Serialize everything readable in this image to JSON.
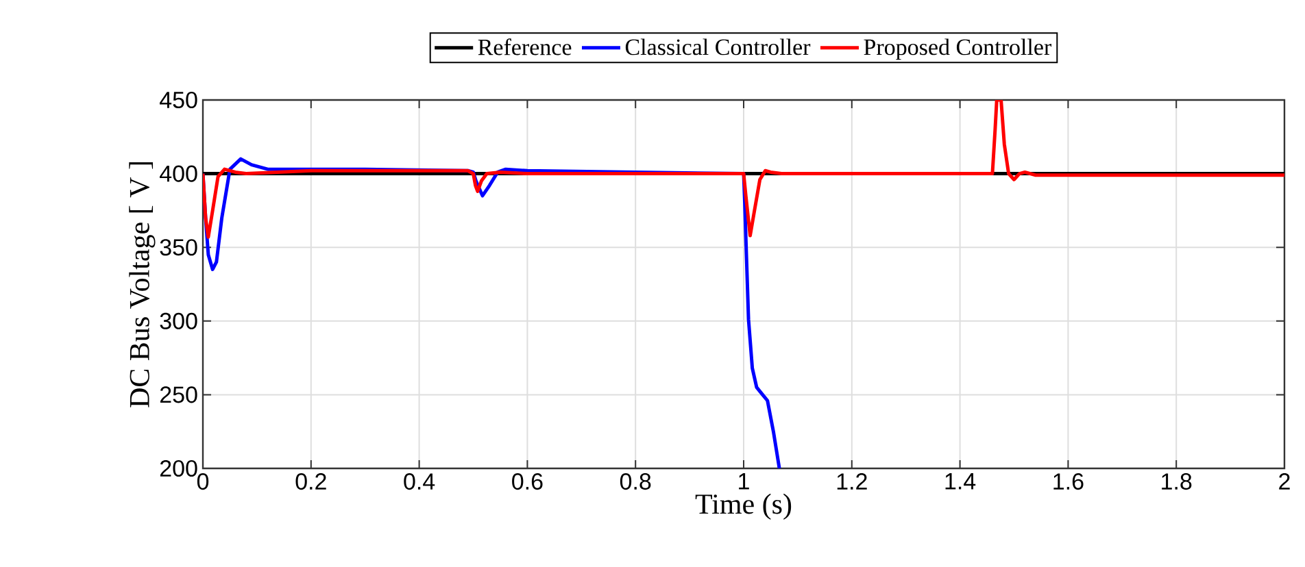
{
  "chart_data": {
    "type": "line",
    "xlabel": "Time (s)",
    "ylabel": "DC Bus Voltage [ V ]",
    "xlim": [
      0,
      2
    ],
    "ylim": [
      200,
      450
    ],
    "xticks": [
      0,
      0.2,
      0.4,
      0.6,
      0.8,
      1,
      1.2,
      1.4,
      1.6,
      1.8,
      2
    ],
    "yticks": [
      200,
      250,
      300,
      350,
      400,
      450
    ],
    "grid": true,
    "legend": "top",
    "line_style": "solid",
    "marker": "none",
    "series": [
      {
        "name": "Reference",
        "color": "#000000",
        "x": [
          0,
          2
        ],
        "values": [
          400,
          400
        ]
      },
      {
        "name": "Classical Controller",
        "color": "#0000ff",
        "x": [
          0,
          0.005,
          0.01,
          0.018,
          0.025,
          0.035,
          0.05,
          0.07,
          0.09,
          0.12,
          0.2,
          0.3,
          0.49,
          0.5,
          0.505,
          0.517,
          0.53,
          0.545,
          0.56,
          0.6,
          0.8,
          1.0,
          1.002,
          1.004,
          1.009,
          1.016,
          1.024,
          1.035,
          1.044,
          1.055,
          1.066
        ],
        "values": [
          400,
          370,
          345,
          335,
          340,
          370,
          403,
          410,
          406,
          403,
          403,
          403,
          402,
          401,
          395,
          385,
          392,
          401,
          403,
          402,
          401,
          400,
          380,
          357,
          301,
          268,
          255,
          250,
          246,
          225,
          200
        ]
      },
      {
        "name": "Proposed Controller",
        "color": "#ff0000",
        "x": [
          0,
          0.005,
          0.01,
          0.018,
          0.028,
          0.04,
          0.06,
          0.08,
          0.2,
          0.49,
          0.5,
          0.504,
          0.508,
          0.515,
          0.525,
          0.55,
          0.6,
          1.0,
          1.004,
          1.012,
          1.02,
          1.03,
          1.04,
          1.05,
          1.07,
          1.2,
          1.46,
          1.465,
          1.468,
          1.476,
          1.482,
          1.49,
          1.5,
          1.51,
          1.52,
          1.54,
          2.0
        ],
        "values": [
          400,
          370,
          357,
          375,
          398,
          403,
          401,
          400,
          402,
          402,
          400,
          392,
          388,
          395,
          400,
          401,
          400,
          400,
          385,
          358,
          375,
          396,
          402,
          401,
          400,
          400,
          400,
          430,
          450,
          450,
          420,
          400,
          396,
          400,
          401,
          399,
          399
        ]
      }
    ]
  }
}
